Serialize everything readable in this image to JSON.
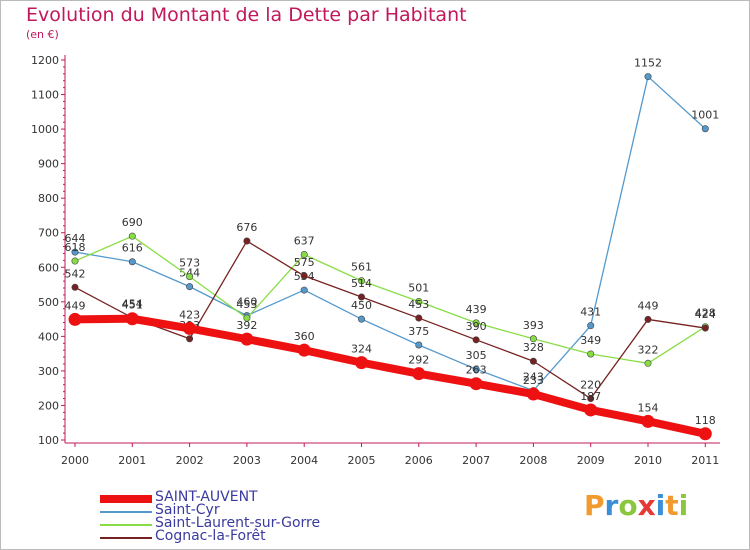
{
  "title": "Evolution du Montant de la Dette par Habitant",
  "unit": "(en €)",
  "colors": {
    "saint_auvent": "#ee1111",
    "saint_cyr": "#5599cc",
    "saint_laurent": "#88dd44",
    "cognac": "#772222",
    "title": "#c2185b"
  },
  "logo": {
    "letters": [
      "P",
      "r",
      "o",
      "x",
      "i",
      "t",
      "i"
    ]
  },
  "chart_data": {
    "type": "line",
    "title": "Evolution du Montant de la Dette par Habitant",
    "ylabel": "(en €)",
    "x": [
      "2000",
      "2001",
      "2002",
      "2003",
      "2004",
      "2005",
      "2006",
      "2007",
      "2008",
      "2009",
      "2010",
      "2011"
    ],
    "ylim": [
      100,
      1200
    ],
    "yticks": [
      100,
      200,
      300,
      400,
      500,
      600,
      700,
      800,
      900,
      1000,
      1100,
      1200
    ],
    "grid": false,
    "legend_position": "bottom-left",
    "series": [
      {
        "name": "SAINT-AUVENT",
        "color": "#ee1111",
        "values": [
          449,
          451,
          423,
          392,
          360,
          324,
          292,
          263,
          233,
          187,
          154,
          118
        ]
      },
      {
        "name": "Saint-Cyr",
        "color": "#5599cc",
        "values": [
          644,
          616,
          544,
          460,
          534,
          450,
          375,
          305,
          243,
          431,
          1152,
          1001
        ]
      },
      {
        "name": "Saint-Laurent-sur-Gorre",
        "color": "#88dd44",
        "values": [
          618,
          690,
          573,
          453,
          637,
          561,
          501,
          439,
          393,
          349,
          322,
          428
        ]
      },
      {
        "name": "Cognac-la-Forêt",
        "color": "#772222",
        "values": [
          542,
          454,
          393,
          676,
          575,
          514,
          453,
          390,
          328,
          220,
          449,
          424
        ]
      }
    ]
  }
}
